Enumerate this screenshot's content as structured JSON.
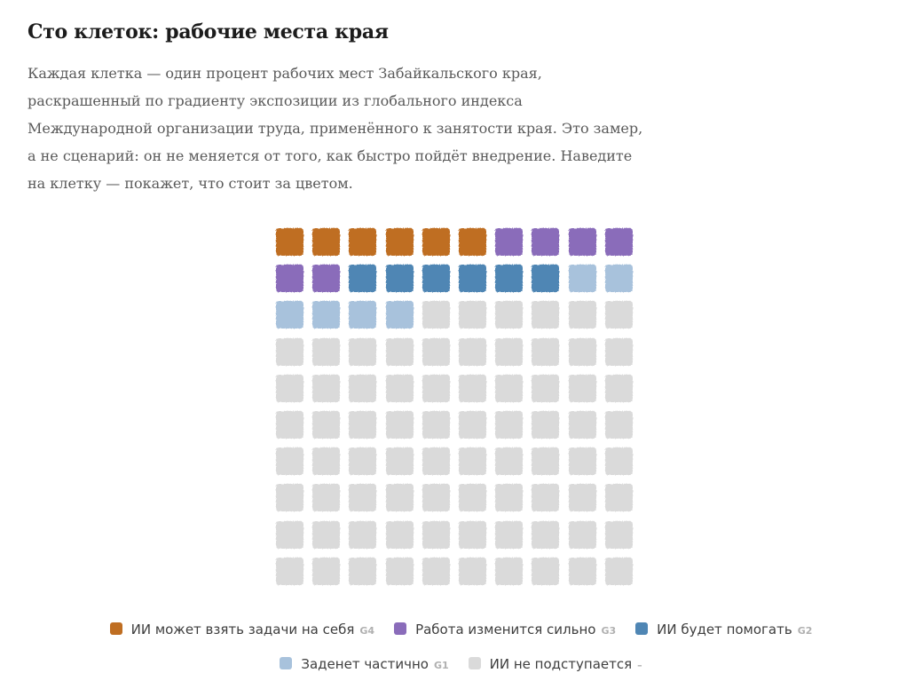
{
  "title": "Сто клеток: рабочие места края",
  "lead": [
    "Каждая клетка — один процент рабочих мест Забайкальского края,",
    "раскрашенный по градиенту экспозиции из глобального индекса",
    "Международной организации труда, применённого к занятости края. Это замер,",
    "а не сценарий: он не меняется от того, как быстро пойдёт внедрение. Наведите",
    "на клетку — покажет, что стоит за цветом."
  ],
  "chart_data": {
    "type": "waffle",
    "grid": {
      "rows": 10,
      "cols": 10
    },
    "total_cells": 100,
    "unit": "1% of jobs",
    "categories": [
      {
        "key": "g4",
        "label": "ИИ может взять задачи на себя",
        "code": "G4",
        "cells": 6,
        "color": "#bf6e22"
      },
      {
        "key": "g3",
        "label": "Работа изменится сильно",
        "code": "G3",
        "cells": 6,
        "color": "#8a6cba"
      },
      {
        "key": "g2",
        "label": "ИИ будет помогать",
        "code": "G2",
        "cells": 6,
        "color": "#4f86b4"
      },
      {
        "key": "g1",
        "label": "Заденет частично",
        "code": "G1",
        "cells": 6,
        "color": "#a8c2dc"
      },
      {
        "key": "none",
        "label": "ИИ не подступается",
        "code": "–",
        "cells": 76,
        "color": "#dadada"
      }
    ],
    "legend_rows": [
      [
        "g4",
        "g3",
        "g2"
      ],
      [
        "g1",
        "none"
      ]
    ]
  }
}
